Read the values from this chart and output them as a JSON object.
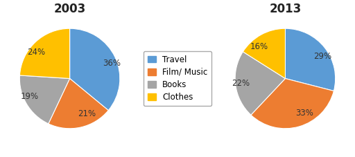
{
  "title_2003": "2003",
  "title_2013": "2013",
  "labels": [
    "Travel",
    "Film/ Music",
    "Books",
    "Clothes"
  ],
  "values_2003": [
    36,
    21,
    19,
    24
  ],
  "values_2013": [
    29,
    33,
    22,
    16
  ],
  "colors": [
    "#5B9BD5",
    "#ED7D31",
    "#A5A5A5",
    "#FFC000"
  ],
  "pct_labels_2003": [
    "36%",
    "21%",
    "19%",
    "24%"
  ],
  "pct_labels_2013": [
    "29%",
    "33%",
    "22%",
    "16%"
  ],
  "background_color": "#ffffff",
  "title_fontsize": 12,
  "label_fontsize": 8.5,
  "legend_fontsize": 8.5,
  "startangle_2003": 90,
  "startangle_2013": 90
}
